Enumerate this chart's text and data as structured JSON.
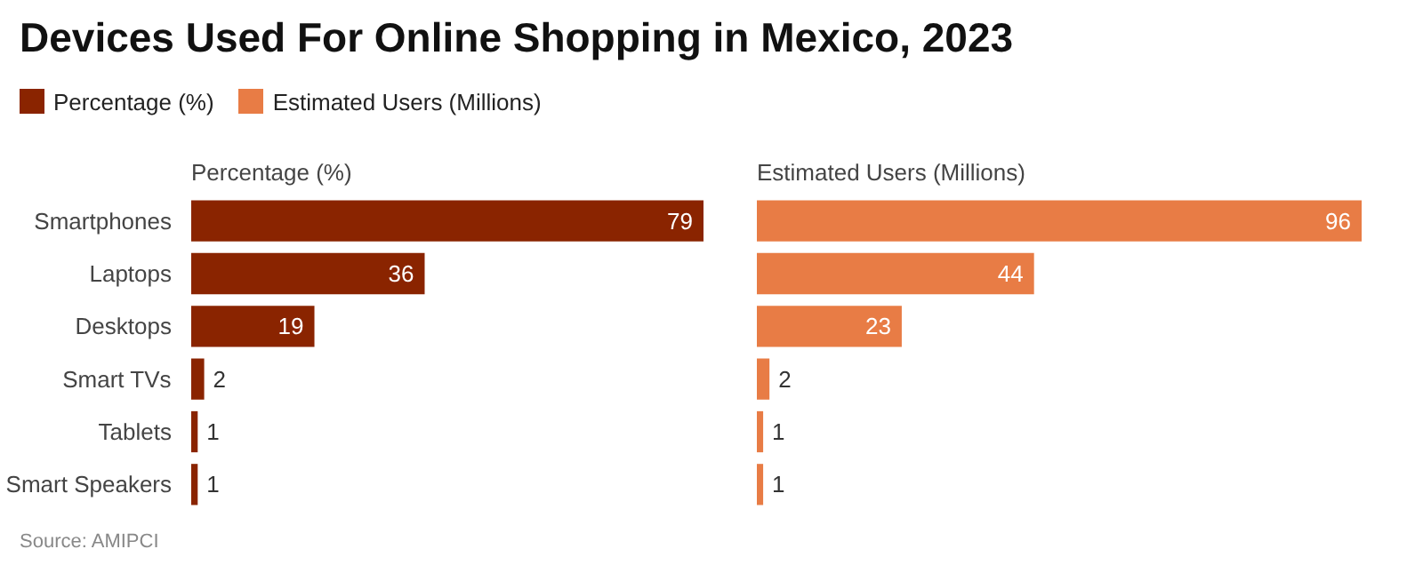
{
  "chart_data": [
    {
      "type": "bar",
      "orientation": "horizontal",
      "title": "Devices Used For Online Shopping in Mexico, 2023",
      "subtitle": "Percentage (%)",
      "categories": [
        "Smartphones",
        "Laptops",
        "Desktops",
        "Smart TVs",
        "Tablets",
        "Smart Speakers"
      ],
      "series": [
        {
          "name": "Percentage (%)",
          "color": "#8a2400",
          "values": [
            79,
            36,
            19,
            2,
            1,
            1
          ]
        }
      ],
      "data_labels": true,
      "legend": "top",
      "annotations": [
        "Source: AMIPCI"
      ]
    },
    {
      "type": "bar",
      "orientation": "horizontal",
      "subtitle": "Estimated Users (Millions)",
      "categories": [
        null,
        null,
        null,
        null,
        null,
        null
      ],
      "series": [
        {
          "name": "Estimated Users (Millions)",
          "color": "#e87c45",
          "values": [
            96,
            44,
            23,
            2,
            1,
            1
          ]
        }
      ],
      "data_labels": true,
      "legend": "top",
      "tick_labels": false
    }
  ]
}
